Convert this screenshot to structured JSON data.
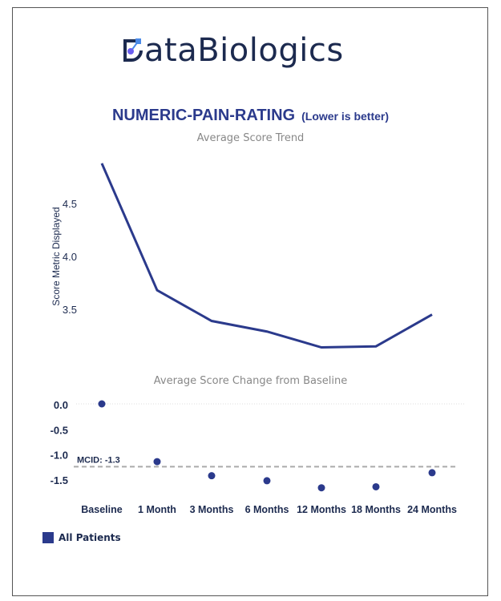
{
  "brand": {
    "name": "DataBiologics",
    "logo_text": "ataBiologics"
  },
  "header": {
    "title": "NUMERIC-PAIN-RATING",
    "note": "(Lower is better)"
  },
  "colors": {
    "series": "#2b3a8c",
    "mcid": "#aaaaaa"
  },
  "chart_data": [
    {
      "type": "line",
      "title": "Average Score Trend",
      "ylabel": "Score Metric Displayed",
      "categories": [
        "Baseline",
        "1 Month",
        "3 Months",
        "6 Months",
        "12 Months",
        "18 Months",
        "24 Months"
      ],
      "yticks": [
        "4.5",
        "4.0",
        "3.5"
      ],
      "ylim": [
        3.0,
        4.9
      ],
      "series": [
        {
          "name": "All Patients",
          "values": [
            4.88,
            3.68,
            3.39,
            3.29,
            3.14,
            3.15,
            3.45
          ]
        }
      ]
    },
    {
      "type": "scatter",
      "title": "Average  Score Change from Baseline",
      "categories": [
        "Baseline",
        "1 Month",
        "3 Months",
        "6 Months",
        "12 Months",
        "18 Months",
        "24 Months"
      ],
      "yticks": [
        "0.0",
        "-0.5",
        "-1.0",
        "-1.5"
      ],
      "ylim": [
        -1.85,
        0.1
      ],
      "series": [
        {
          "name": "All Patients",
          "values": [
            0,
            -1.15,
            -1.43,
            -1.53,
            -1.67,
            -1.65,
            -1.37
          ]
        }
      ],
      "reference_line": {
        "label": "MCID: -1.3",
        "value": -1.25
      }
    }
  ],
  "legend": {
    "label": "All Patients"
  }
}
